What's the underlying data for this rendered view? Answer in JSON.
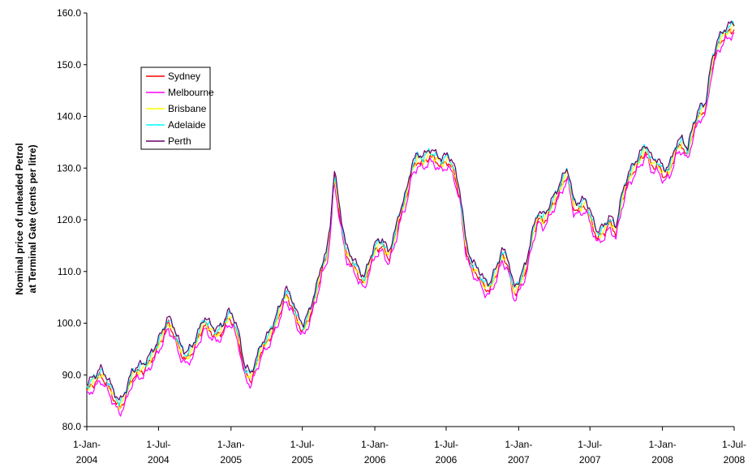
{
  "chart_data": {
    "type": "line",
    "title": "",
    "xlabel": "",
    "ylabel": "Nominal price of unleaded Petrol at Terminal Gate (cents per litre)",
    "ylabel_lines": [
      "Nominal price of unleaded Petrol",
      "at Terminal Gate (cents per litre)"
    ],
    "ylim": [
      80,
      160
    ],
    "y_ticks": [
      "80.0",
      "90.0",
      "100.0",
      "110.0",
      "120.0",
      "130.0",
      "140.0",
      "150.0",
      "160.0"
    ],
    "x_range": [
      "2004-01-01",
      "2008-07-01"
    ],
    "x_ticks": [
      {
        "date": "2004-01-01",
        "line1": "1-Jan-",
        "line2": "2004"
      },
      {
        "date": "2004-07-01",
        "line1": "1-Jul-",
        "line2": "2004"
      },
      {
        "date": "2005-01-01",
        "line1": "1-Jan-",
        "line2": "2005"
      },
      {
        "date": "2005-07-01",
        "line1": "1-Jul-",
        "line2": "2005"
      },
      {
        "date": "2006-01-01",
        "line1": "1-Jan-",
        "line2": "2006"
      },
      {
        "date": "2006-07-01",
        "line1": "1-Jul-",
        "line2": "2006"
      },
      {
        "date": "2007-01-01",
        "line1": "1-Jan-",
        "line2": "2007"
      },
      {
        "date": "2007-07-01",
        "line1": "1-Jul-",
        "line2": "2007"
      },
      {
        "date": "2008-01-01",
        "line1": "1-Jan-",
        "line2": "2008"
      },
      {
        "date": "2008-07-01",
        "line1": "1-Jul-",
        "line2": "2008"
      }
    ],
    "grid": false,
    "legend_position": "top-left",
    "base_series": {
      "x": [
        "2004-01-01",
        "2004-01-20",
        "2004-02-05",
        "2004-02-20",
        "2004-03-10",
        "2004-03-25",
        "2004-04-10",
        "2004-04-25",
        "2004-05-10",
        "2004-05-25",
        "2004-06-05",
        "2004-06-20",
        "2004-07-10",
        "2004-07-25",
        "2004-08-10",
        "2004-08-25",
        "2004-09-10",
        "2004-09-25",
        "2004-10-10",
        "2004-10-25",
        "2004-11-10",
        "2004-11-25",
        "2004-12-10",
        "2004-12-25",
        "2005-01-05",
        "2005-01-20",
        "2005-02-05",
        "2005-02-20",
        "2005-03-05",
        "2005-03-20",
        "2005-04-05",
        "2005-04-20",
        "2005-05-05",
        "2005-05-20",
        "2005-06-05",
        "2005-06-20",
        "2005-07-05",
        "2005-07-20",
        "2005-08-05",
        "2005-08-20",
        "2005-09-01",
        "2005-09-10",
        "2005-09-20",
        "2005-10-05",
        "2005-10-20",
        "2005-11-05",
        "2005-11-20",
        "2005-12-05",
        "2005-12-20",
        "2006-01-05",
        "2006-01-20",
        "2006-02-05",
        "2006-02-20",
        "2006-03-05",
        "2006-03-20",
        "2006-04-05",
        "2006-04-20",
        "2006-05-05",
        "2006-05-20",
        "2006-06-05",
        "2006-06-20",
        "2006-07-05",
        "2006-07-20",
        "2006-08-05",
        "2006-08-20",
        "2006-09-05",
        "2006-09-20",
        "2006-10-05",
        "2006-10-20",
        "2006-11-05",
        "2006-11-20",
        "2006-12-05",
        "2006-12-20",
        "2007-01-05",
        "2007-01-20",
        "2007-02-05",
        "2007-02-20",
        "2007-03-05",
        "2007-03-20",
        "2007-04-05",
        "2007-04-20",
        "2007-05-05",
        "2007-05-20",
        "2007-06-05",
        "2007-06-20",
        "2007-07-05",
        "2007-07-20",
        "2007-08-05",
        "2007-08-20",
        "2007-09-05",
        "2007-09-20",
        "2007-10-05",
        "2007-10-20",
        "2007-11-05",
        "2007-11-20",
        "2007-12-05",
        "2007-12-20",
        "2008-01-05",
        "2008-01-20",
        "2008-02-05",
        "2008-02-20",
        "2008-03-05",
        "2008-03-20",
        "2008-04-05",
        "2008-04-20",
        "2008-05-05",
        "2008-05-20",
        "2008-06-05",
        "2008-06-20",
        "2008-07-01"
      ],
      "y": [
        87.5,
        89.0,
        90.5,
        89.0,
        86.0,
        84.0,
        86.5,
        90.0,
        91.0,
        91.5,
        92.5,
        94.5,
        97.5,
        100.5,
        98.5,
        95.0,
        93.5,
        95.0,
        97.5,
        100.5,
        99.0,
        98.0,
        99.0,
        101.5,
        101.0,
        97.5,
        91.0,
        89.5,
        92.0,
        95.5,
        97.0,
        99.5,
        102.5,
        106.0,
        104.0,
        100.5,
        99.0,
        102.0,
        106.0,
        111.0,
        113.0,
        118.5,
        129.0,
        121.0,
        114.0,
        112.0,
        110.0,
        108.0,
        112.0,
        115.0,
        115.5,
        113.0,
        116.5,
        121.0,
        124.0,
        130.0,
        132.0,
        131.5,
        133.0,
        132.0,
        131.0,
        132.0,
        130.0,
        125.0,
        115.0,
        111.0,
        110.0,
        107.5,
        107.0,
        110.0,
        113.5,
        112.0,
        106.0,
        108.0,
        111.0,
        117.0,
        121.0,
        120.0,
        122.0,
        124.5,
        127.0,
        129.5,
        123.0,
        122.5,
        123.5,
        120.0,
        117.0,
        118.0,
        120.0,
        118.0,
        124.0,
        128.0,
        130.0,
        132.0,
        134.0,
        131.0,
        131.0,
        129.0,
        130.0,
        134.0,
        135.0,
        133.0,
        138.0,
        141.0,
        142.0,
        150.0,
        154.0,
        156.0,
        157.0,
        157.5
      ]
    },
    "series": [
      {
        "name": "Sydney",
        "color": "#ff0000",
        "offset": -0.6
      },
      {
        "name": "Melbourne",
        "color": "#ff00ff",
        "offset": -1.6
      },
      {
        "name": "Brisbane",
        "color": "#ffff00",
        "offset": -0.2
      },
      {
        "name": "Adelaide",
        "color": "#00ffff",
        "offset": 0.4
      },
      {
        "name": "Perth",
        "color": "#660066",
        "offset": 0.8
      }
    ]
  }
}
